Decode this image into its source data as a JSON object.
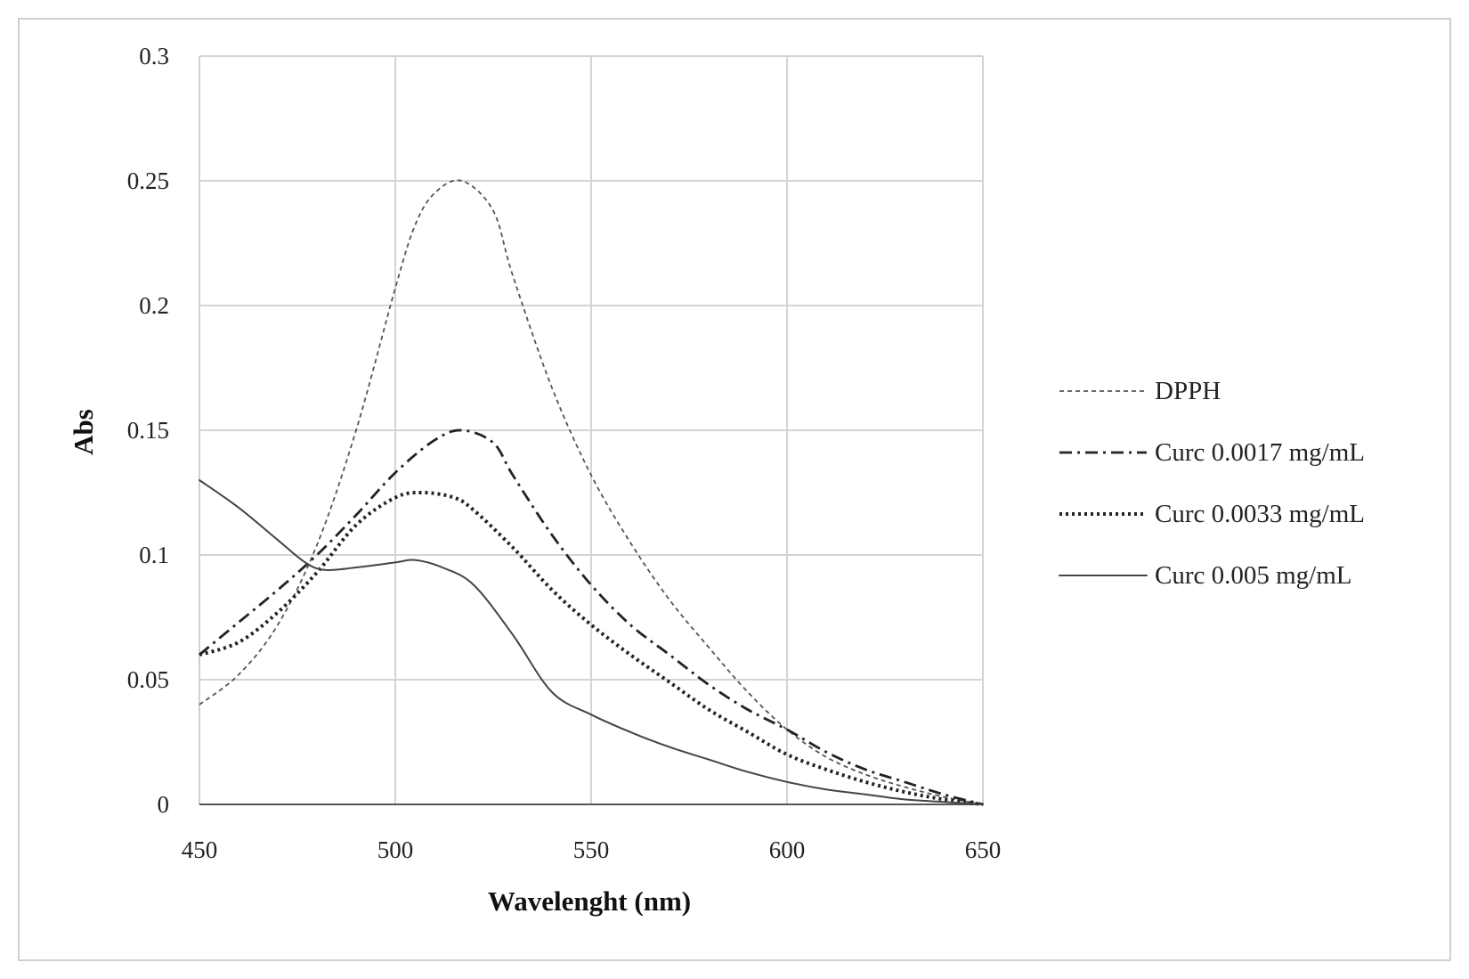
{
  "chart_data": {
    "type": "line",
    "title": "",
    "xlabel": "Wavelenght (nm)",
    "ylabel": "Abs",
    "xlim": [
      450,
      650
    ],
    "ylim": [
      0,
      0.3
    ],
    "x_ticks": [
      450,
      500,
      550,
      600,
      650
    ],
    "y_ticks": [
      0,
      0.05,
      0.1,
      0.15,
      0.2,
      0.25,
      0.3
    ],
    "x_tick_labels": [
      "450",
      "500",
      "550",
      "600",
      "650"
    ],
    "y_tick_labels": [
      "0",
      "0.05",
      "0.1",
      "0.15",
      "0.2",
      "0.25",
      "0.3"
    ],
    "grid": true,
    "legend_position": "right",
    "series": [
      {
        "name": "DPPH",
        "style": "dotted-fine",
        "color": "#555555",
        "x": [
          450,
          460,
          470,
          480,
          490,
          500,
          505,
          510,
          517,
          525,
          530,
          540,
          550,
          560,
          570,
          580,
          590,
          600,
          610,
          620,
          630,
          640,
          650
        ],
        "y": [
          0.04,
          0.052,
          0.072,
          0.104,
          0.15,
          0.207,
          0.232,
          0.245,
          0.25,
          0.238,
          0.212,
          0.167,
          0.132,
          0.105,
          0.082,
          0.063,
          0.045,
          0.03,
          0.019,
          0.012,
          0.007,
          0.003,
          0.0
        ]
      },
      {
        "name": "Curc 0.0017 mg/mL",
        "style": "dash-dot",
        "color": "#222222",
        "x": [
          450,
          460,
          470,
          480,
          490,
          500,
          510,
          517,
          525,
          530,
          540,
          550,
          560,
          570,
          580,
          590,
          600,
          610,
          620,
          630,
          640,
          650
        ],
        "y": [
          0.06,
          0.073,
          0.086,
          0.1,
          0.116,
          0.133,
          0.146,
          0.15,
          0.145,
          0.132,
          0.108,
          0.088,
          0.072,
          0.06,
          0.048,
          0.038,
          0.03,
          0.021,
          0.014,
          0.009,
          0.004,
          0.0
        ]
      },
      {
        "name": "Curc 0.0033 mg/mL",
        "style": "dotted-bold",
        "color": "#222222",
        "x": [
          450,
          460,
          470,
          480,
          490,
          500,
          507,
          515,
          520,
          530,
          540,
          550,
          560,
          570,
          580,
          590,
          600,
          610,
          620,
          630,
          640,
          650
        ],
        "y": [
          0.06,
          0.065,
          0.077,
          0.093,
          0.112,
          0.123,
          0.125,
          0.123,
          0.118,
          0.103,
          0.086,
          0.072,
          0.06,
          0.049,
          0.038,
          0.029,
          0.02,
          0.014,
          0.009,
          0.005,
          0.002,
          0.0
        ]
      },
      {
        "name": "Curc 0.005 mg/mL",
        "style": "solid",
        "color": "#444444",
        "x": [
          450,
          460,
          470,
          477,
          482,
          490,
          500,
          505,
          512,
          520,
          530,
          540,
          550,
          560,
          570,
          580,
          590,
          600,
          610,
          620,
          630,
          640,
          650
        ],
        "y": [
          0.13,
          0.119,
          0.106,
          0.097,
          0.094,
          0.095,
          0.097,
          0.098,
          0.095,
          0.088,
          0.068,
          0.045,
          0.036,
          0.029,
          0.023,
          0.018,
          0.013,
          0.009,
          0.006,
          0.004,
          0.002,
          0.001,
          0.0
        ]
      }
    ]
  }
}
